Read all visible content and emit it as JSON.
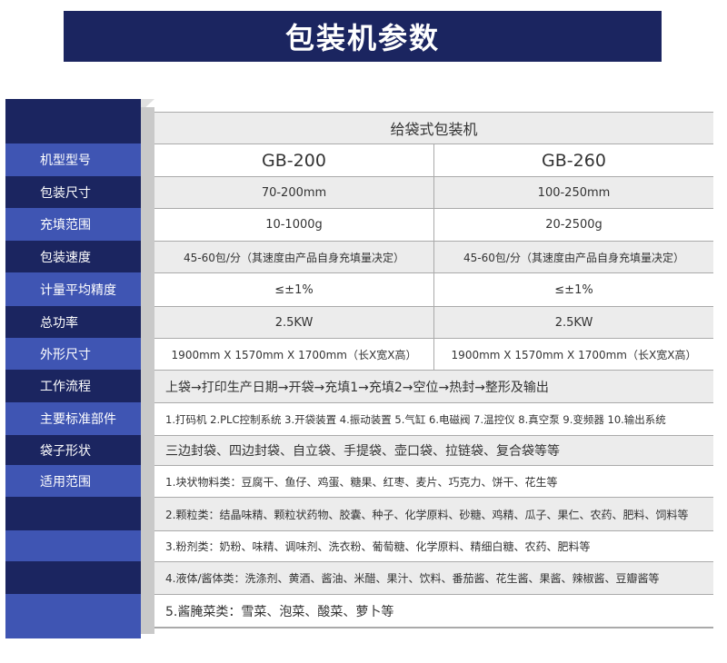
{
  "title": "包装机参数",
  "table_header": "给袋式包装机",
  "labels": [
    "机型型号",
    "包装尺寸",
    "充填范围",
    "包装速度",
    "计量平均精度",
    "总功率",
    "外形尺寸",
    "工作流程",
    "主要标准部件",
    "袋子形状",
    "适用范围"
  ],
  "models": [
    {
      "model": "GB-200",
      "size": "70-200mm",
      "fill": "10-1000g",
      "speed": "45-60包/分（其速度由产品自身充填量决定）",
      "precision": "≤±1%",
      "power": "2.5KW",
      "dims": "1900mm X 1570mm X 1700mm（长X宽X高）"
    },
    {
      "model": "GB-260",
      "size": "100-250mm",
      "fill": "20-2500g",
      "speed": "45-60包/分（其速度由产品自身充填量决定）",
      "precision": "≤±1%",
      "power": "2.5KW",
      "dims": "1900mm X 1570mm X 1700mm（长X宽X高）"
    }
  ],
  "workflow": "上袋→打印生产日期→开袋→充填1→充填2→空位→热封→整形及输出",
  "parts": "1.打码机 2.PLC控制系统 3.开袋装置 4.振动装置 5.气缸 6.电磁阀 7.温控仪 8.真空泵 9.变频器 10.输出系统",
  "bags": "三边封袋、四边封袋、自立袋、手提袋、壶口袋、拉链袋、复合袋等等",
  "scope": [
    "1.块状物料类：豆腐干、鱼仔、鸡蛋、糖果、红枣、麦片、巧克力、饼干、花生等",
    "2.颗粒类：结晶味精、颗粒状药物、胶囊、种子、化学原料、砂糖、鸡精、瓜子、果仁、农药、肥料、饲料等",
    "3.粉剂类：奶粉、味精、调味剂、洗衣粉、葡萄糖、化学原料、精细白糖、农药、肥料等",
    "4.液体/酱体类：洗涤剂、黄酒、酱油、米醋、果汁、饮料、番茄酱、花生酱、果酱、辣椒酱、豆瓣酱等",
    "5.酱腌菜类：雪菜、泡菜、酸菜、萝卜等"
  ],
  "colors": {
    "dark": "#1b2560",
    "light": "#3f55b3"
  }
}
